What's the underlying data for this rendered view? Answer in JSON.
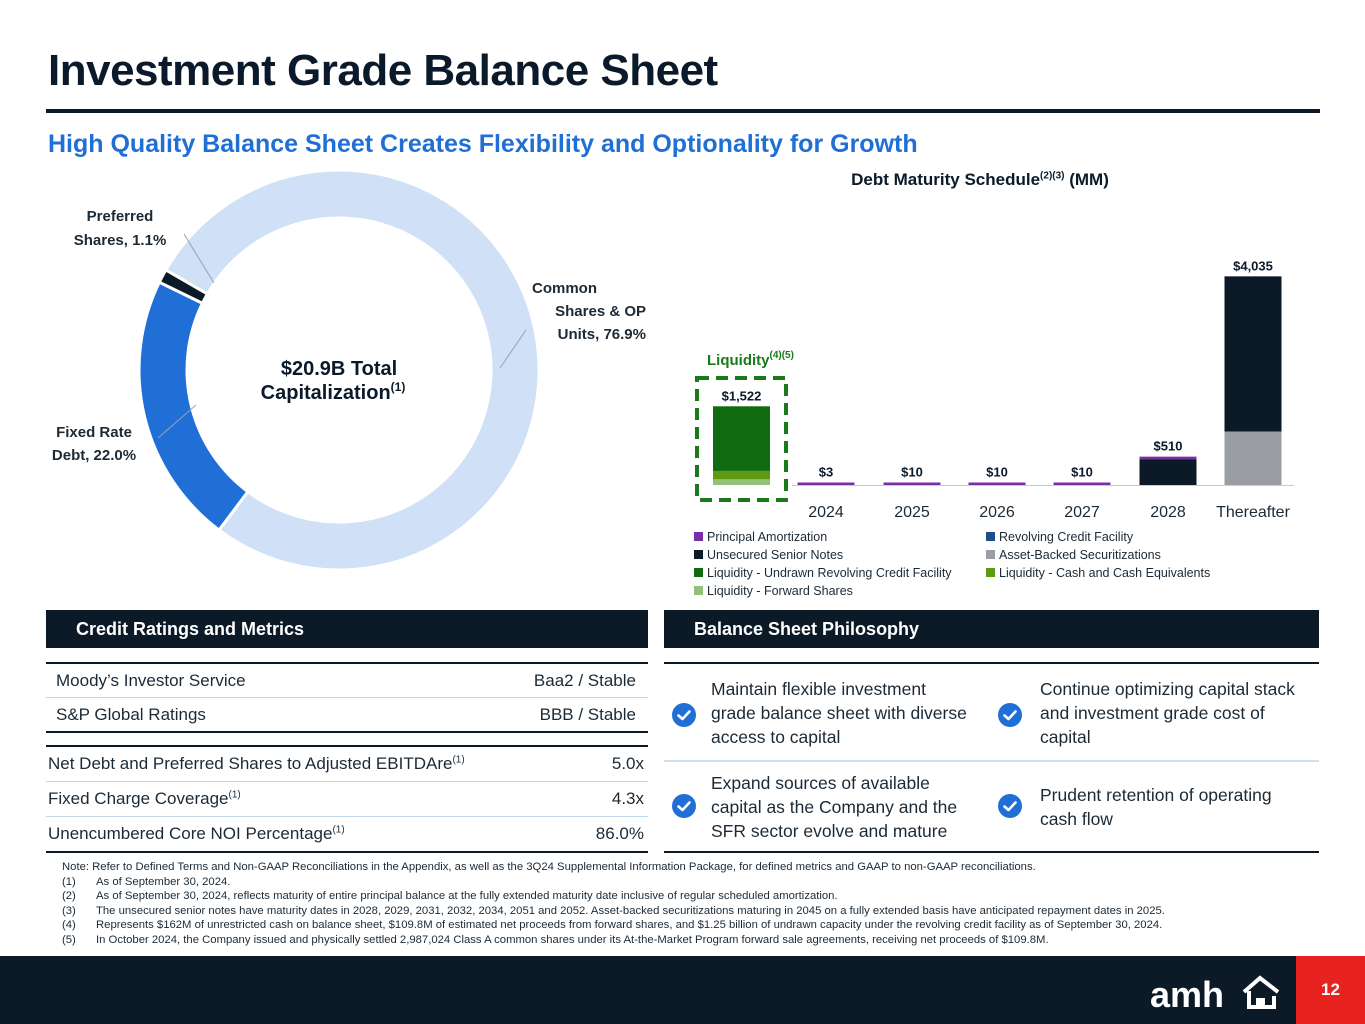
{
  "header": {
    "title": "Investment Grade Balance Sheet",
    "subtitle": "High Quality Balance Sheet Creates Flexibility and Optionality for Growth"
  },
  "chart_data": [
    {
      "type": "pie",
      "center_label_line1": "$20.9B Total",
      "center_label_line2": "Capitalization",
      "center_label_sup": "(1)",
      "slices": [
        {
          "name_line1": "Common",
          "name_line2": "Shares & OP",
          "name_line3": "Units, 76.9%",
          "value": 76.9,
          "color": "#cfe0f7"
        },
        {
          "name_line1": "Fixed Rate",
          "name_line2": "Debt, 22.0%",
          "value": 22.0,
          "color": "#1f6fd6"
        },
        {
          "name_line1": "Preferred",
          "name_line2": "Shares, 1.1%",
          "value": 1.1,
          "color": "#0c1a28"
        }
      ]
    },
    {
      "type": "bar",
      "title": "Debt Maturity Schedule",
      "title_sup": "(2)(3)",
      "title_suffix": " (MM)",
      "liquidity_label": "Liquidity",
      "liquidity_sup": "(4)(5)",
      "liquidity_total_label": "$1,522",
      "liquidity_stack": [
        {
          "series": "Liquidity - Forward Shares",
          "value": 110
        },
        {
          "series": "Liquidity - Cash and Cash Equivalents",
          "value": 162
        },
        {
          "series": "Liquidity - Undrawn Revolving Credit Facility",
          "value": 1250
        }
      ],
      "categories": [
        "2024",
        "2025",
        "2026",
        "2027",
        "2028",
        "Thereafter"
      ],
      "total_labels": [
        "$3",
        "$10",
        "$10",
        "$10",
        "$510",
        "$4,035"
      ],
      "series": [
        {
          "name": "Principal Amortization",
          "color": "#7b2fa6",
          "values": [
            3,
            10,
            10,
            10,
            10,
            0
          ]
        },
        {
          "name": "Revolving Credit Facility",
          "color": "#1d4e89",
          "values": [
            0,
            0,
            0,
            0,
            0,
            0
          ]
        },
        {
          "name": "Unsecured Senior Notes",
          "color": "#0c1a28",
          "values": [
            0,
            0,
            0,
            0,
            500,
            3000
          ]
        },
        {
          "name": "Asset-Backed Securitizations",
          "color": "#9a9da3",
          "values": [
            0,
            0,
            0,
            0,
            0,
            1035
          ]
        }
      ],
      "liquidity_series": [
        {
          "name": "Liquidity - Undrawn Revolving Credit Facility",
          "color": "#0f6b0f"
        },
        {
          "name": "Liquidity - Cash and Cash Equivalents",
          "color": "#5e9a12"
        },
        {
          "name": "Liquidity - Forward Shares",
          "color": "#92c27a"
        }
      ],
      "ylim": [
        0,
        4100
      ]
    }
  ],
  "legend": [
    {
      "label": "Principal Amortization",
      "color": "#7b2fa6"
    },
    {
      "label": "Revolving Credit Facility",
      "color": "#1d4e89"
    },
    {
      "label": "Unsecured Senior Notes",
      "color": "#0c1a28"
    },
    {
      "label": "Asset-Backed Securitizations",
      "color": "#9a9da3"
    },
    {
      "label": "Liquidity - Undrawn Revolving Credit Facility",
      "color": "#0f6b0f"
    },
    {
      "label": "Liquidity - Cash and Cash Equivalents",
      "color": "#5e9a12"
    },
    {
      "label": "Liquidity - Forward Shares",
      "color": "#92c27a"
    }
  ],
  "credit": {
    "heading": "Credit Ratings and Metrics",
    "ratings": [
      {
        "label": "Moody’s Investor Service",
        "value": "Baa2 / Stable"
      },
      {
        "label": "S&P Global Ratings",
        "value": "BBB / Stable"
      }
    ],
    "metrics": [
      {
        "label": "Net Debt and Preferred Shares to Adjusted EBITDAre",
        "sup": "(1)",
        "value": "5.0x"
      },
      {
        "label": "Fixed Charge Coverage",
        "sup": "(1)",
        "value": "4.3x"
      },
      {
        "label": "Unencumbered Core NOI Percentage",
        "sup": "(1)",
        "value": "86.0%"
      }
    ]
  },
  "philosophy": {
    "heading": "Balance Sheet Philosophy",
    "items": [
      {
        "line1": "Maintain flexible investment",
        "line2": "grade balance sheet with diverse",
        "line3": "access to capital"
      },
      {
        "line1": "Continue optimizing capital stack",
        "line2": "and investment grade cost of",
        "line3": "capital"
      },
      {
        "line1": "Expand sources of available",
        "line2": "capital as the Company and the",
        "line3": "SFR sector evolve and mature"
      },
      {
        "line1": "Prudent retention of operating",
        "line2": "cash flow",
        "line3": ""
      }
    ]
  },
  "notes": {
    "intro": "Note: Refer to Defined Terms and Non-GAAP Reconciliations in the Appendix, as well as the 3Q24 Supplemental Information Package, for defined metrics and GAAP to non-GAAP reconciliations.",
    "items": [
      {
        "num": "(1)",
        "text": "As of September 30, 2024."
      },
      {
        "num": "(2)",
        "text": "As of September 30, 2024, reflects maturity of entire principal balance at the fully extended maturity date inclusive of regular scheduled amortization."
      },
      {
        "num": "(3)",
        "text": "The unsecured senior notes have maturity dates in 2028, 2029, 2031, 2032, 2034, 2051 and 2052. Asset-backed securitizations maturing in 2045 on a fully extended basis have anticipated repayment dates in 2025."
      },
      {
        "num": "(4)",
        "text": "Represents $162M of unrestricted cash on balance sheet, $109.8M of estimated net proceeds from forward shares, and $1.25 billion of undrawn capacity under the revolving credit facility as of September 30, 2024."
      },
      {
        "num": "(5)",
        "text": "In October 2024, the Company issued and physically settled 2,987,024 Class A common shares under its At-the-Market Program forward sale agreements, receiving net proceeds of $109.8M."
      }
    ]
  },
  "footer": {
    "logo": "amh",
    "page_number": "12"
  }
}
